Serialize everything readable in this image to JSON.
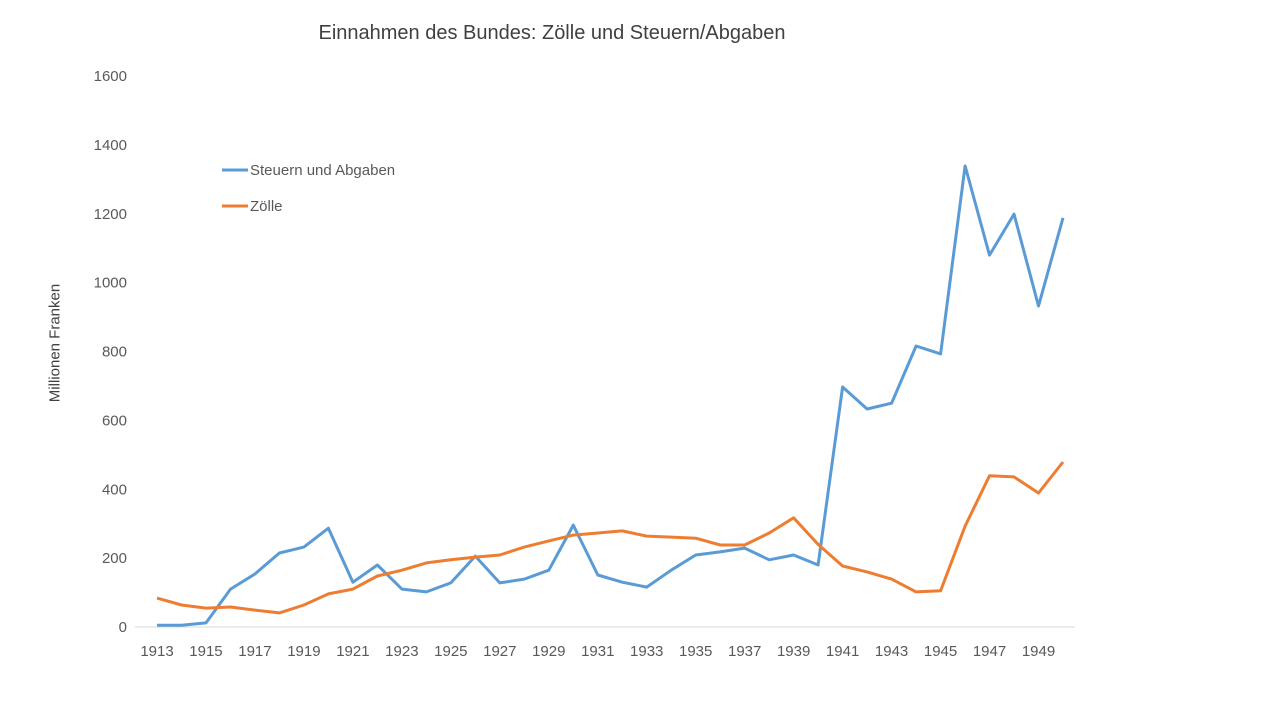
{
  "chart_data": {
    "type": "line",
    "title": "Einnahmen des Bundes: Zölle und Steuern/Abgaben",
    "xlabel": "",
    "ylabel": "Millionen Franken",
    "ylim": [
      0,
      1600
    ],
    "yticks": [
      0,
      200,
      400,
      600,
      800,
      1000,
      1200,
      1400,
      1600
    ],
    "xtick_labels": [
      "1913",
      "1915",
      "1917",
      "1919",
      "1921",
      "1923",
      "1925",
      "1927",
      "1929",
      "1931",
      "1933",
      "1935",
      "1937",
      "1939",
      "1941",
      "1943",
      "1945",
      "1947",
      "1949"
    ],
    "x": [
      1913,
      1914,
      1915,
      1916,
      1917,
      1918,
      1919,
      1920,
      1921,
      1922,
      1923,
      1924,
      1925,
      1926,
      1927,
      1928,
      1929,
      1930,
      1931,
      1932,
      1933,
      1934,
      1935,
      1936,
      1937,
      1938,
      1939,
      1940,
      1941,
      1942,
      1943,
      1944,
      1945,
      1946,
      1947,
      1948,
      1949,
      1950
    ],
    "grid": false,
    "legend_placement": "top-left",
    "series": [
      {
        "name": "Steuern und Abgaben",
        "color": "#5b9bd5",
        "values": [
          5,
          5,
          12,
          110,
          154,
          215,
          232,
          287,
          130,
          180,
          110,
          102,
          128,
          206,
          128,
          139,
          165,
          296,
          151,
          130,
          116,
          165,
          209,
          218,
          229,
          195,
          209,
          180,
          697,
          633,
          650,
          816,
          793,
          1339,
          1080,
          1199,
          932,
          1188
        ]
      },
      {
        "name": "Zölle",
        "color": "#ed7d31",
        "values": [
          84,
          64,
          55,
          58,
          49,
          41,
          64,
          96,
          110,
          148,
          165,
          186,
          195,
          203,
          209,
          232,
          250,
          267,
          273,
          279,
          264,
          261,
          258,
          238,
          238,
          273,
          317,
          240,
          177,
          160,
          139,
          102,
          105,
          293,
          439,
          436,
          389,
          479
        ]
      }
    ]
  }
}
